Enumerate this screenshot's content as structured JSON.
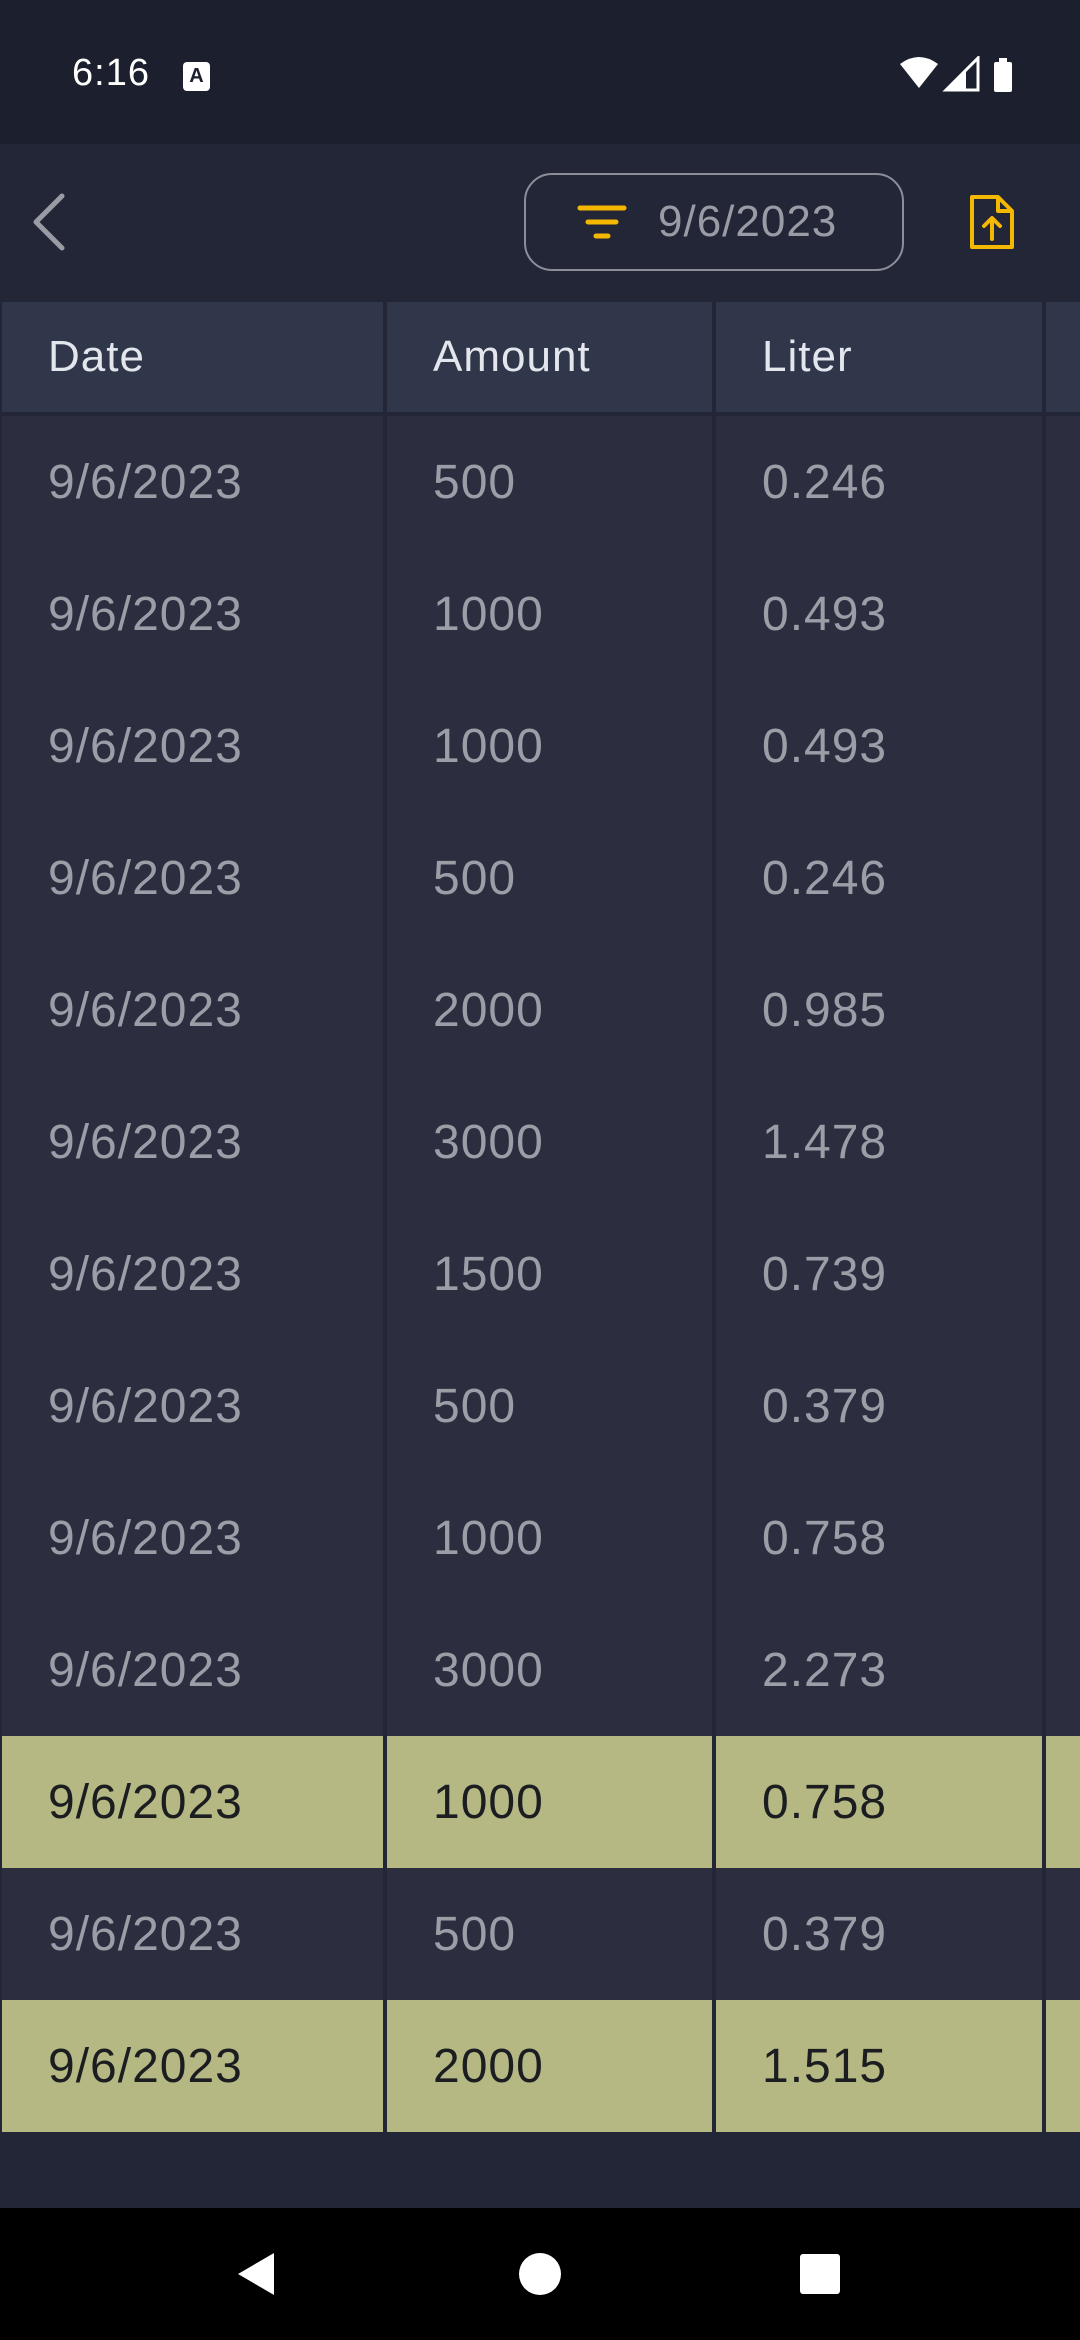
{
  "status": {
    "time": "6:16",
    "a_icon": "A"
  },
  "toolbar": {
    "filter_date": "9/6/2023"
  },
  "table": {
    "headers": [
      "Date",
      "Amount",
      "Liter",
      ""
    ],
    "rows": [
      {
        "date": "9/6/2023",
        "amount": "500",
        "liter": "0.246",
        "highlight": false
      },
      {
        "date": "9/6/2023",
        "amount": "1000",
        "liter": "0.493",
        "highlight": false
      },
      {
        "date": "9/6/2023",
        "amount": "1000",
        "liter": "0.493",
        "highlight": false
      },
      {
        "date": "9/6/2023",
        "amount": "500",
        "liter": "0.246",
        "highlight": false
      },
      {
        "date": "9/6/2023",
        "amount": "2000",
        "liter": "0.985",
        "highlight": false
      },
      {
        "date": "9/6/2023",
        "amount": "3000",
        "liter": "1.478",
        "highlight": false
      },
      {
        "date": "9/6/2023",
        "amount": "1500",
        "liter": "0.739",
        "highlight": false
      },
      {
        "date": "9/6/2023",
        "amount": "500",
        "liter": "0.379",
        "highlight": false
      },
      {
        "date": "9/6/2023",
        "amount": "1000",
        "liter": "0.758",
        "highlight": false
      },
      {
        "date": "9/6/2023",
        "amount": "3000",
        "liter": "2.273",
        "highlight": false
      },
      {
        "date": "9/6/2023",
        "amount": "1000",
        "liter": "0.758",
        "highlight": true
      },
      {
        "date": "9/6/2023",
        "amount": "500",
        "liter": "0.379",
        "highlight": false
      },
      {
        "date": "9/6/2023",
        "amount": "2000",
        "liter": "1.515",
        "highlight": true
      }
    ]
  },
  "colors": {
    "background": "#1c1f2d",
    "app_bar": "#232637",
    "cell": "#2c2e40",
    "header_cell": "#31374a",
    "highlight": "#b5b883",
    "accent": "#f5b800"
  },
  "icons": {
    "back": "chevron-left-icon",
    "filter": "filter-icon",
    "export": "file-upload-icon",
    "wifi": "wifi-icon",
    "signal": "signal-icon",
    "battery": "battery-icon",
    "nav_back": "nav-back-icon",
    "nav_home": "nav-home-icon",
    "nav_recents": "nav-recents-icon"
  }
}
